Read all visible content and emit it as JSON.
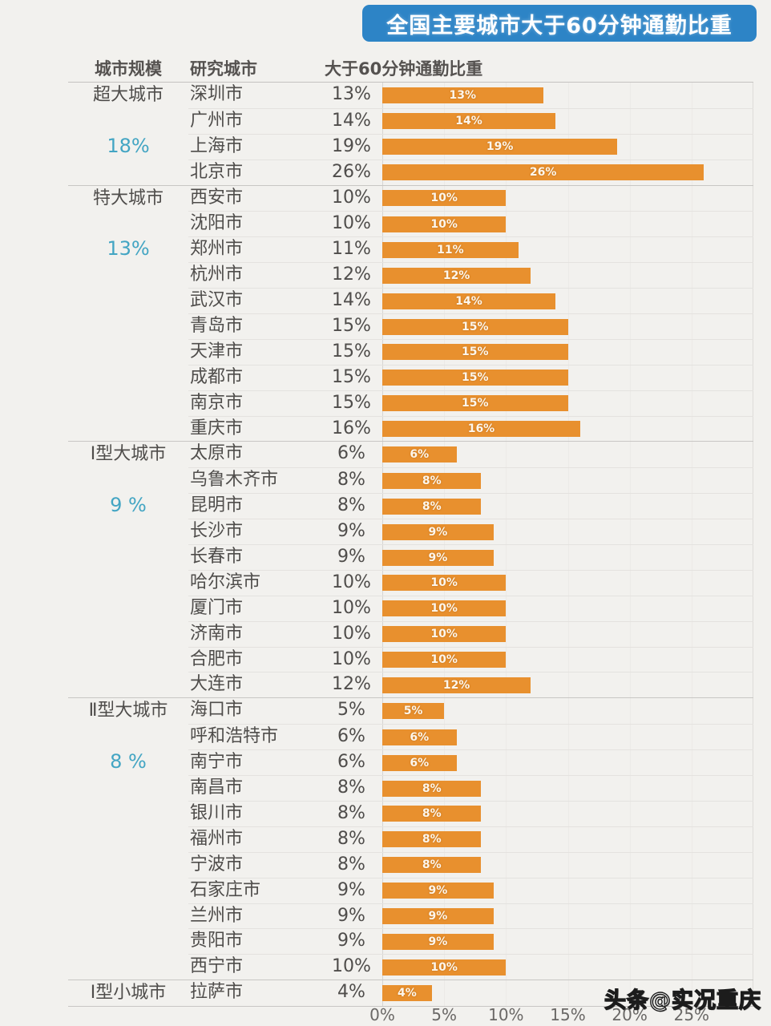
{
  "columns": {
    "scale": "城市规模",
    "city": "研究城市",
    "value": "大于60分钟通勤比重"
  },
  "watermark": "头条@实况重庆",
  "colors": {
    "banner_blue": "#2d84c6",
    "bar_orange": "#e8902e",
    "group_pct_teal": "#43a5c3",
    "text_gray": "#4f4d4b"
  },
  "chart_data": {
    "type": "bar",
    "title": "全国主要城市大于60分钟通勤比重",
    "orientation": "horizontal",
    "unit": "%",
    "xlim": [
      0,
      30
    ],
    "x_ticks": [
      {
        "value": 0,
        "label": "0%"
      },
      {
        "value": 5,
        "label": "5%"
      },
      {
        "value": 10,
        "label": "10%"
      },
      {
        "value": 15,
        "label": "15%"
      },
      {
        "value": 20,
        "label": "20%"
      },
      {
        "value": 25,
        "label": "25%"
      }
    ],
    "grid": true,
    "bar_labels_shown": true,
    "groups": [
      {
        "scale": "超大城市",
        "group_pct": "18%",
        "cities": [
          {
            "name": "深圳市",
            "pct": 13
          },
          {
            "name": "广州市",
            "pct": 14
          },
          {
            "name": "上海市",
            "pct": 19
          },
          {
            "name": "北京市",
            "pct": 26
          }
        ]
      },
      {
        "scale": "特大城市",
        "group_pct": "13%",
        "cities": [
          {
            "name": "西安市",
            "pct": 10
          },
          {
            "name": "沈阳市",
            "pct": 10
          },
          {
            "name": "郑州市",
            "pct": 11
          },
          {
            "name": "杭州市",
            "pct": 12
          },
          {
            "name": "武汉市",
            "pct": 14
          },
          {
            "name": "青岛市",
            "pct": 15
          },
          {
            "name": "天津市",
            "pct": 15
          },
          {
            "name": "成都市",
            "pct": 15
          },
          {
            "name": "南京市",
            "pct": 15
          },
          {
            "name": "重庆市",
            "pct": 16
          }
        ]
      },
      {
        "scale": "Ⅰ型大城市",
        "group_pct": "9 %",
        "cities": [
          {
            "name": "太原市",
            "pct": 6
          },
          {
            "name": "乌鲁木齐市",
            "pct": 8
          },
          {
            "name": "昆明市",
            "pct": 8
          },
          {
            "name": "长沙市",
            "pct": 9
          },
          {
            "name": "长春市",
            "pct": 9
          },
          {
            "name": "哈尔滨市",
            "pct": 10
          },
          {
            "name": "厦门市",
            "pct": 10
          },
          {
            "name": "济南市",
            "pct": 10
          },
          {
            "name": "合肥市",
            "pct": 10
          },
          {
            "name": "大连市",
            "pct": 12
          }
        ]
      },
      {
        "scale": "Ⅱ型大城市",
        "group_pct": "8 %",
        "cities": [
          {
            "name": "海口市",
            "pct": 5
          },
          {
            "name": "呼和浩特市",
            "pct": 6
          },
          {
            "name": "南宁市",
            "pct": 6
          },
          {
            "name": "南昌市",
            "pct": 8
          },
          {
            "name": "银川市",
            "pct": 8
          },
          {
            "name": "福州市",
            "pct": 8
          },
          {
            "name": "宁波市",
            "pct": 8
          },
          {
            "name": "石家庄市",
            "pct": 9
          },
          {
            "name": "兰州市",
            "pct": 9
          },
          {
            "name": "贵阳市",
            "pct": 9
          },
          {
            "name": "西宁市",
            "pct": 10
          }
        ]
      },
      {
        "scale": "Ⅰ型小城市",
        "group_pct": null,
        "cities": [
          {
            "name": "拉萨市",
            "pct": 4
          }
        ]
      }
    ]
  }
}
